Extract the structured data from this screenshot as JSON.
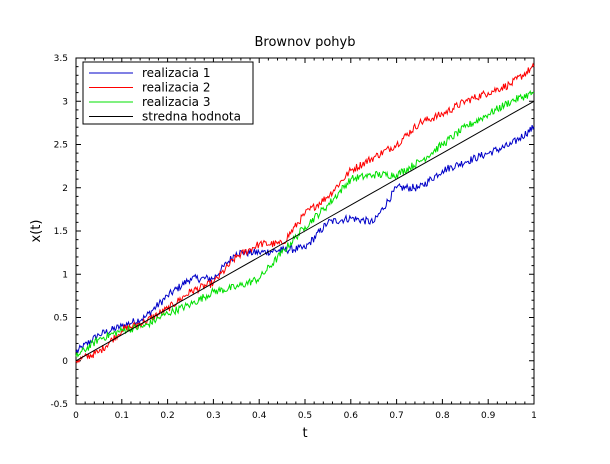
{
  "chart_data": {
    "type": "line",
    "title": "Brownov pohyb",
    "xlabel": "t",
    "ylabel": "x(t)",
    "xlim": [
      0,
      1
    ],
    "ylim": [
      -0.5,
      3.5
    ],
    "x_ticks": [
      "0",
      "0.1",
      "0.2",
      "0.3",
      "0.4",
      "0.5",
      "0.6",
      "0.7",
      "0.8",
      "0.9",
      "1"
    ],
    "y_ticks": [
      "-0.5",
      "0",
      "0.5",
      "1",
      "1.5",
      "2",
      "2.5",
      "3",
      "3.5"
    ],
    "grid": false,
    "legend_position": "top-left",
    "x": [
      0,
      0.05,
      0.1,
      0.15,
      0.2,
      0.25,
      0.3,
      0.35,
      0.4,
      0.45,
      0.5,
      0.55,
      0.6,
      0.65,
      0.7,
      0.75,
      0.8,
      0.85,
      0.9,
      0.95,
      1.0
    ],
    "series": [
      {
        "name": "realizacia 1",
        "color": "#0000c8",
        "values": [
          0.1,
          0.3,
          0.4,
          0.5,
          0.75,
          0.95,
          0.95,
          1.25,
          1.25,
          1.28,
          1.3,
          1.6,
          1.65,
          1.6,
          2.0,
          2.0,
          2.2,
          2.3,
          2.4,
          2.5,
          2.7
        ]
      },
      {
        "name": "realizacia 2",
        "color": "#ff0000",
        "values": [
          0.0,
          0.1,
          0.35,
          0.45,
          0.6,
          0.8,
          0.9,
          1.2,
          1.35,
          1.35,
          1.7,
          1.9,
          2.2,
          2.35,
          2.5,
          2.75,
          2.85,
          3.0,
          3.1,
          3.2,
          3.4
        ]
      },
      {
        "name": "realizacia 3",
        "color": "#00e000",
        "values": [
          0.05,
          0.25,
          0.35,
          0.4,
          0.55,
          0.65,
          0.8,
          0.85,
          0.95,
          1.25,
          1.55,
          1.8,
          2.1,
          2.15,
          2.15,
          2.3,
          2.5,
          2.7,
          2.85,
          3.0,
          3.1
        ]
      },
      {
        "name": "stredna hodnota",
        "color": "#000000",
        "values": [
          0.0,
          0.15,
          0.3,
          0.45,
          0.6,
          0.75,
          0.9,
          1.05,
          1.2,
          1.35,
          1.5,
          1.65,
          1.8,
          1.95,
          2.1,
          2.25,
          2.4,
          2.55,
          2.7,
          2.85,
          3.0
        ]
      }
    ]
  }
}
